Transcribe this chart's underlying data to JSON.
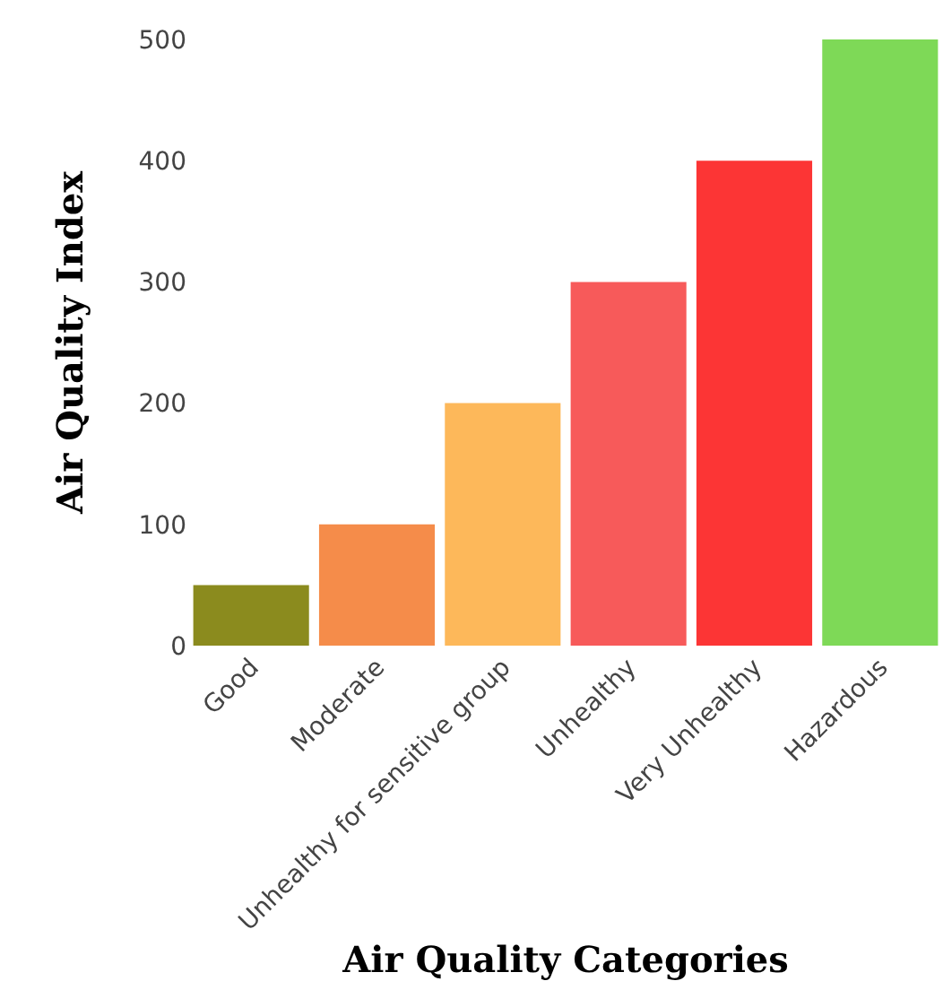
{
  "chart_data": {
    "type": "bar",
    "xlabel": "Air Quality Categories",
    "ylabel": "Air Quality Index",
    "categories": [
      "Good",
      "Moderate",
      "Unhealthy for sensitive group",
      "Unhealthy",
      "Very Unhealthy",
      "Hazardous"
    ],
    "values": [
      50,
      100,
      200,
      300,
      400,
      500
    ],
    "colors": [
      "#8b8b1e",
      "#f58c4a",
      "#fdb85a",
      "#f75a5a",
      "#fc3535",
      "#7ed957"
    ],
    "ylim": [
      0,
      500
    ],
    "yticks": [
      0,
      100,
      200,
      300,
      400,
      500
    ]
  }
}
